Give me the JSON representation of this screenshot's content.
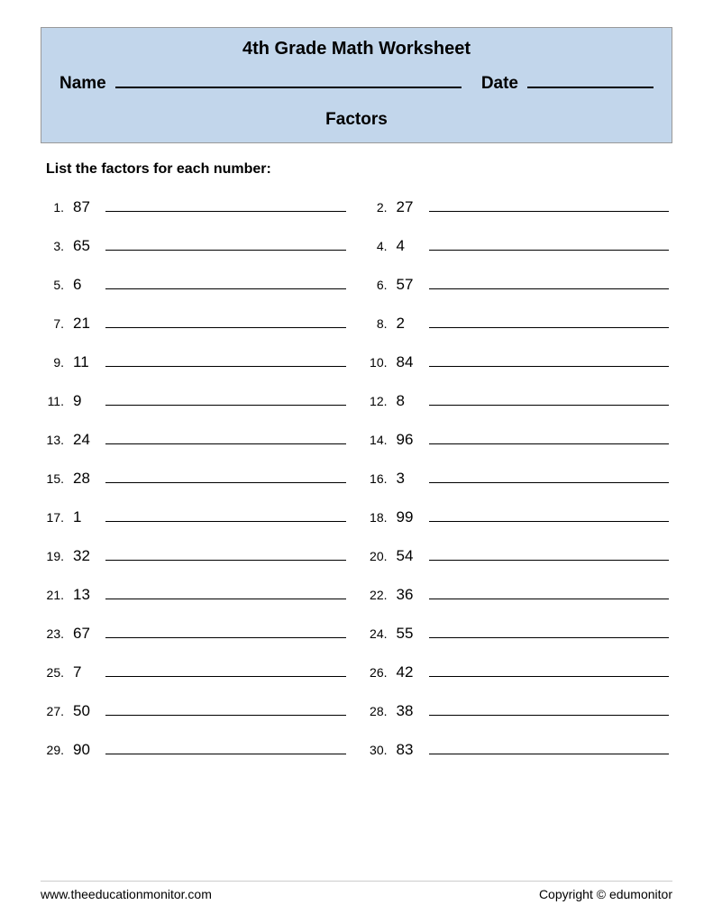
{
  "header": {
    "title": "4th Grade Math Worksheet",
    "name_label": "Name",
    "date_label": "Date",
    "subtitle": "Factors",
    "background_color": "#c2d6eb"
  },
  "instruction": "List the factors for each number:",
  "problems": [
    {
      "num": "1.",
      "value": "87"
    },
    {
      "num": "2.",
      "value": "27"
    },
    {
      "num": "3.",
      "value": "65"
    },
    {
      "num": "4.",
      "value": "4"
    },
    {
      "num": "5.",
      "value": "6"
    },
    {
      "num": "6.",
      "value": "57"
    },
    {
      "num": "7.",
      "value": "21"
    },
    {
      "num": "8.",
      "value": "2"
    },
    {
      "num": "9.",
      "value": "11"
    },
    {
      "num": "10.",
      "value": "84"
    },
    {
      "num": "11.",
      "value": "9"
    },
    {
      "num": "12.",
      "value": "8"
    },
    {
      "num": "13.",
      "value": "24"
    },
    {
      "num": "14.",
      "value": "96"
    },
    {
      "num": "15.",
      "value": "28"
    },
    {
      "num": "16.",
      "value": "3"
    },
    {
      "num": "17.",
      "value": "1"
    },
    {
      "num": "18.",
      "value": "99"
    },
    {
      "num": "19.",
      "value": "32"
    },
    {
      "num": "20.",
      "value": "54"
    },
    {
      "num": "21.",
      "value": "13"
    },
    {
      "num": "22.",
      "value": "36"
    },
    {
      "num": "23.",
      "value": "67"
    },
    {
      "num": "24.",
      "value": "55"
    },
    {
      "num": "25.",
      "value": "7"
    },
    {
      "num": "26.",
      "value": "42"
    },
    {
      "num": "27.",
      "value": "50"
    },
    {
      "num": "28.",
      "value": "38"
    },
    {
      "num": "29.",
      "value": "90"
    },
    {
      "num": "30.",
      "value": "83"
    }
  ],
  "footer": {
    "website": "www.theeducationmonitor.com",
    "copyright": "Copyright © edumonitor"
  }
}
